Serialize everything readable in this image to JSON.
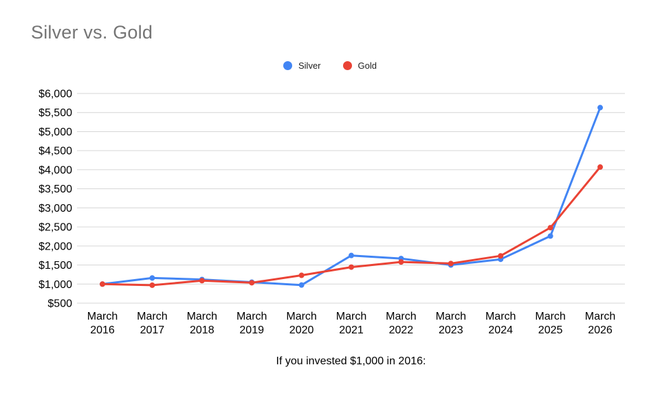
{
  "title": "Silver vs. Gold",
  "caption": "If you invested $1,000 in 2016:",
  "colors": {
    "title_text": "#757575",
    "axis_text": "#000000",
    "grid_line": "#d6d6d6",
    "legend_text": "#222222",
    "background": "#ffffff",
    "silver": "#4285F4",
    "gold": "#EA4335"
  },
  "chart_data": {
    "type": "line",
    "title": "Silver vs. Gold",
    "xlabel": "",
    "ylabel": "",
    "grid": true,
    "legend_position": "top-center",
    "ylim": [
      500,
      6000
    ],
    "categories": [
      "March 2016",
      "March 2017",
      "March 2018",
      "March 2019",
      "March 2020",
      "March 2021",
      "March 2022",
      "March 2023",
      "March 2024",
      "March 2025",
      "March 2026"
    ],
    "series": [
      {
        "name": "Silver",
        "color": "#4285F4",
        "values": [
          1000,
          1160,
          1120,
          1050,
          975,
          1750,
          1670,
          1500,
          1650,
          2260,
          5630
        ]
      },
      {
        "name": "Gold",
        "color": "#EA4335",
        "values": [
          1000,
          970,
          1090,
          1035,
          1230,
          1445,
          1580,
          1540,
          1740,
          2480,
          4070
        ]
      }
    ],
    "y_ticks": [
      {
        "value": 6000,
        "label": "$6,000"
      },
      {
        "value": 5500,
        "label": "$5,500"
      },
      {
        "value": 5000,
        "label": "$5,000"
      },
      {
        "value": 4500,
        "label": "$4,500"
      },
      {
        "value": 4000,
        "label": "$4,000"
      },
      {
        "value": 3500,
        "label": "$3,500"
      },
      {
        "value": 3000,
        "label": "$3,000"
      },
      {
        "value": 2500,
        "label": "$2,500"
      },
      {
        "value": 2000,
        "label": "$2,000"
      },
      {
        "value": 1500,
        "label": "$1,500"
      },
      {
        "value": 1000,
        "label": "$1,000"
      },
      {
        "value": 500,
        "label": "$500"
      }
    ],
    "caption": "If you invested $1,000 in 2016:"
  }
}
